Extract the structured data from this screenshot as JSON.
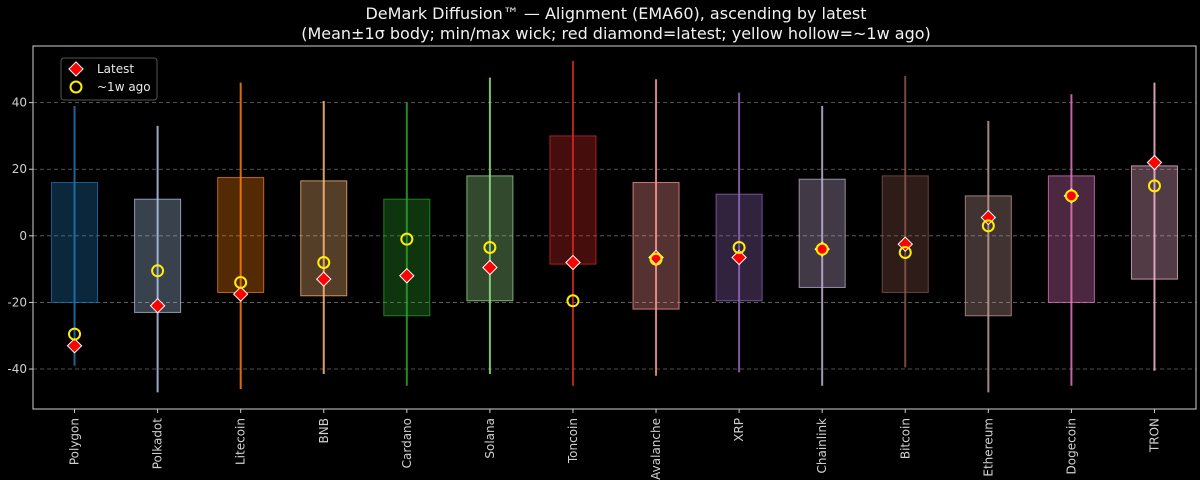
{
  "chart_data": {
    "type": "box",
    "title_line1": "DeMark Diffusion™ — Alignment (EMA60), ascending by latest",
    "title_line2": "(Mean±1σ body; min/max wick; red diamond=latest; yellow hollow=~1w ago)",
    "xlabel": "",
    "ylabel": "",
    "ylim": [
      -52,
      57
    ],
    "yticks": [
      -40,
      -20,
      0,
      20,
      40
    ],
    "grid": "horizontal-dashed",
    "legend_position": "top-left",
    "legend": [
      {
        "key": "latest",
        "label": "Latest",
        "marker": "red-diamond"
      },
      {
        "key": "week_ago",
        "label": "~1w ago",
        "marker": "yellow-hollow-circle"
      }
    ],
    "categories": [
      "Polygon",
      "Polkadot",
      "Litecoin",
      "BNB",
      "Cardano",
      "Solana",
      "Toncoin",
      "Avalanche",
      "XRP",
      "Chainlink",
      "Bitcoin",
      "Ethereum",
      "Dogecoin",
      "TRON"
    ],
    "series": [
      {
        "name": "Polygon",
        "color": "#1f77b4",
        "mean_minus_sd": -20,
        "mean_plus_sd": 16,
        "min": -39,
        "max": 39,
        "latest": -33,
        "week_ago": -29.5
      },
      {
        "name": "Polkadot",
        "color": "#aec7e8",
        "mean_minus_sd": -23,
        "mean_plus_sd": 11,
        "min": -47,
        "max": 33,
        "latest": -21,
        "week_ago": -10.5
      },
      {
        "name": "Litecoin",
        "color": "#ff7f0e",
        "mean_minus_sd": -17,
        "mean_plus_sd": 17.5,
        "min": -46,
        "max": 46,
        "latest": -17.5,
        "week_ago": -14
      },
      {
        "name": "BNB",
        "color": "#ffbb78",
        "mean_minus_sd": -18,
        "mean_plus_sd": 16.5,
        "min": -41.5,
        "max": 40.5,
        "latest": -13,
        "week_ago": -8
      },
      {
        "name": "Cardano",
        "color": "#2ca02c",
        "mean_minus_sd": -24,
        "mean_plus_sd": 11,
        "min": -45,
        "max": 40,
        "latest": -12,
        "week_ago": -1
      },
      {
        "name": "Solana",
        "color": "#98df8a",
        "mean_minus_sd": -19.5,
        "mean_plus_sd": 18,
        "min": -41.5,
        "max": 47.5,
        "latest": -9.5,
        "week_ago": -3.5
      },
      {
        "name": "Toncoin",
        "color": "#d62728",
        "mean_minus_sd": -8.5,
        "mean_plus_sd": 30,
        "min": -45,
        "max": 52.5,
        "latest": -8,
        "week_ago": -19.5
      },
      {
        "name": "Avalanche",
        "color": "#ff9896",
        "mean_minus_sd": -22,
        "mean_plus_sd": 16,
        "min": -42,
        "max": 47,
        "latest": -6.5,
        "week_ago": -7
      },
      {
        "name": "XRP",
        "color": "#9467bd",
        "mean_minus_sd": -19.5,
        "mean_plus_sd": 12.5,
        "min": -41,
        "max": 43,
        "latest": -6.5,
        "week_ago": -3.5
      },
      {
        "name": "Chainlink",
        "color": "#c5b0d5",
        "mean_minus_sd": -15.5,
        "mean_plus_sd": 17,
        "min": -45,
        "max": 39,
        "latest": -4,
        "week_ago": -4
      },
      {
        "name": "Bitcoin",
        "color": "#8c564b",
        "mean_minus_sd": -17,
        "mean_plus_sd": 18,
        "min": -39.5,
        "max": 48,
        "latest": -2.5,
        "week_ago": -5
      },
      {
        "name": "Ethereum",
        "color": "#c49c94",
        "mean_minus_sd": -24,
        "mean_plus_sd": 12,
        "min": -47,
        "max": 34.5,
        "latest": 5.5,
        "week_ago": 3
      },
      {
        "name": "Dogecoin",
        "color": "#e377c2",
        "mean_minus_sd": -20,
        "mean_plus_sd": 18,
        "min": -45,
        "max": 42.5,
        "latest": 12,
        "week_ago": 12
      },
      {
        "name": "TRON",
        "color": "#f7b6d2",
        "mean_minus_sd": -13,
        "mean_plus_sd": 21,
        "min": -40.5,
        "max": 46,
        "latest": 22,
        "week_ago": 15
      }
    ]
  }
}
